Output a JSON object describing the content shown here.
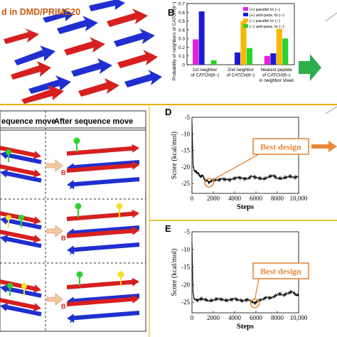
{
  "panel_a": {
    "title_fragment": "d in DMD/PRIME20",
    "colors": {
      "red": "#d71f1f",
      "blue": "#1f2fd0",
      "title": "#c55a11"
    }
  },
  "panel_c": {
    "header_before": "equence move",
    "header_after": "After sequence move",
    "strand_b_label": "B",
    "strand_a_label": "A",
    "colors": {
      "red": "#d71f1f",
      "blue": "#1f2fd0",
      "green": "#2fd12f",
      "yellow": "#f2e22a",
      "arrow": "#f4c9a0"
    }
  },
  "separator_color": "#e8b000",
  "green_arrow_color": "#2eae4a",
  "chart_data": [
    {
      "panel": "B",
      "type": "bar",
      "ylabel": "Probability of neighbors of CATCH(6−)",
      "yticks": [
        "0",
        "0.1",
        "0.2",
        "0.3",
        "0.4",
        "0.5",
        "0.6",
        "0.7"
      ],
      "ylim": [
        0,
        0.7
      ],
      "categories": [
        "1st neighbor of CATCH(6−)",
        "2nd neighbor of CATCH(6−)",
        "Nearest peptide of CATCH(6−) in neighbor sheet"
      ],
      "category_lines": [
        [
          "1st neighbor",
          "of CATCH(6−)"
        ],
        [
          "2nd neighbor",
          "of CATCH(6−)"
        ],
        [
          "Nearest peptide",
          "of CATCH(6−)",
          "in neighbor sheet"
        ]
      ],
      "legend_position": "top-right",
      "series": [
        {
          "name": "(+) parallel to (−)",
          "color": "#e81ed8",
          "values": [
            0.29,
            0.0,
            0.1
          ]
        },
        {
          "name": "(+) anti-para. to (−)",
          "color": "#1a1ad6",
          "values": [
            0.61,
            0.14,
            0.13
          ]
        },
        {
          "name": "(−) parallel to (−)",
          "color": "#f6b800",
          "values": [
            0.0,
            0.5,
            0.41
          ]
        },
        {
          "name": "(−) anti-para. to (−)",
          "color": "#28d428",
          "values": [
            0.05,
            0.19,
            0.3
          ]
        }
      ]
    },
    {
      "panel": "D",
      "type": "line",
      "xlabel": "Steps",
      "ylabel": "Score (kcal/mol)",
      "xlim": [
        0,
        10000
      ],
      "ylim": [
        -28,
        -5
      ],
      "xticks": [
        "0",
        "2000",
        "4000",
        "6000",
        "8000",
        "10,000"
      ],
      "yticks": [
        "-25",
        "-20",
        "-15",
        "-10",
        "-5"
      ],
      "annotation": "Best design",
      "annotation_color": "#e8893a",
      "best_point": {
        "x": 1600,
        "y": -24.8
      },
      "x": [
        0,
        100,
        200,
        400,
        600,
        800,
        1000,
        1200,
        1400,
        1600,
        1800,
        2000,
        2400,
        2800,
        3200,
        3600,
        4000,
        4400,
        4800,
        5200,
        5600,
        6000,
        6400,
        6800,
        7200,
        7600,
        8000,
        8400,
        8800,
        9200,
        9600,
        10000
      ],
      "y": [
        -6,
        -19,
        -21,
        -21.5,
        -22,
        -23,
        -22.5,
        -24,
        -24,
        -24.8,
        -24.2,
        -23.8,
        -24,
        -23.6,
        -23.8,
        -23.9,
        -23.4,
        -23.2,
        -23.5,
        -23.6,
        -22.8,
        -23.2,
        -23.5,
        -23.6,
        -23,
        -22.6,
        -23.4,
        -23.5,
        -23.2,
        -22.8,
        -23.2,
        -22.9
      ]
    },
    {
      "panel": "E",
      "type": "line",
      "xlabel": "Steps",
      "ylabel": "Score (kcal/mol)",
      "xlim": [
        0,
        10000
      ],
      "ylim": [
        -28,
        -5
      ],
      "xticks": [
        "0",
        "2000",
        "4000",
        "6000",
        "8000",
        "10,000"
      ],
      "yticks": [
        "-25",
        "-20",
        "-15",
        "-10",
        "-5"
      ],
      "annotation": "Best design",
      "annotation_color": "#e8893a",
      "best_point": {
        "x": 5900,
        "y": -25.3
      },
      "x": [
        0,
        100,
        200,
        500,
        800,
        1200,
        1600,
        2000,
        2400,
        2800,
        3200,
        3600,
        4000,
        4400,
        4800,
        5200,
        5600,
        5900,
        6200,
        6600,
        7000,
        7400,
        7800,
        8200,
        8600,
        9000,
        9400,
        9800,
        10000
      ],
      "y": [
        -8,
        -22,
        -24,
        -24.5,
        -24,
        -24.2,
        -24.6,
        -24.4,
        -24,
        -24.2,
        -24.5,
        -24.3,
        -24,
        -24.4,
        -24.6,
        -24.2,
        -24.8,
        -25.3,
        -24.6,
        -24.2,
        -23.6,
        -23.8,
        -23.2,
        -22.6,
        -23,
        -22.4,
        -22,
        -23,
        -22.8
      ]
    }
  ],
  "panel_labels": {
    "b": "B",
    "d": "D",
    "e": "E"
  }
}
